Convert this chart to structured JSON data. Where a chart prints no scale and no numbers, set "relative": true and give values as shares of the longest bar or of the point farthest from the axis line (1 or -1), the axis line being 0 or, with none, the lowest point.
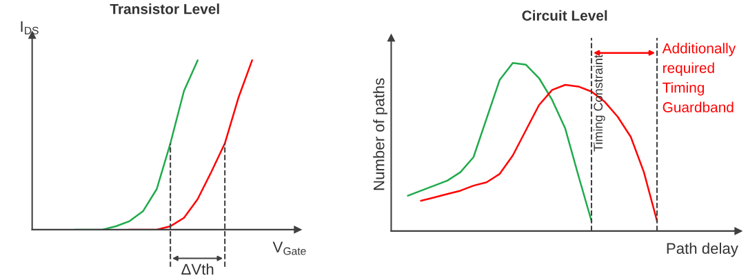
{
  "chart_data": [
    {
      "type": "line",
      "title": "Transistor Level",
      "xlabel": "V$_{Gate}$",
      "ylabel": "I$_{DS}$",
      "relative": true,
      "marker": "none",
      "line_style": "solid",
      "categories": [
        null,
        null,
        null,
        null,
        null,
        null,
        null,
        null,
        null,
        null,
        null,
        null,
        null,
        null,
        null,
        null,
        null,
        null,
        null,
        null
      ],
      "series": [
        {
          "color": "#1faa4b",
          "values": [
            null,
            null,
            null,
            0,
            0,
            0,
            0.02,
            0.05,
            0.11,
            0.24,
            0.51,
            0.82,
            1,
            null,
            null,
            null,
            null,
            null,
            null,
            null
          ]
        },
        {
          "color": "#ff0000",
          "values": [
            null,
            null,
            null,
            null,
            null,
            null,
            null,
            0,
            0,
            0,
            0.02,
            0.07,
            0.18,
            0.34,
            0.51,
            0.78,
            1,
            null,
            null,
            null
          ]
        }
      ],
      "annotations": [
        "ΔVth"
      ]
    },
    {
      "type": "line",
      "title": "Circuit Level",
      "xlabel": "Path delay",
      "ylabel": "Number of paths",
      "relative": true,
      "marker": "none",
      "line_style": "solid",
      "categories": [
        null,
        null,
        null,
        null,
        null,
        null,
        null,
        null,
        null,
        null,
        null,
        null,
        null,
        null,
        null,
        null,
        null,
        null,
        null,
        null,
        null,
        null,
        null,
        null,
        null,
        null,
        null
      ],
      "series": [
        {
          "color": "#1faa4b",
          "values": [
            null,
            0.21,
            0.24,
            0.27,
            0.3,
            0.35,
            0.44,
            0.67,
            0.9,
            1,
            0.99,
            0.91,
            0.78,
            0.61,
            0.33,
            0.06,
            null,
            null,
            null,
            null,
            null,
            null,
            null,
            null,
            null,
            null,
            null
          ]
        },
        {
          "color": "#ff0000",
          "values": [
            null,
            null,
            0.18,
            0.2,
            0.22,
            0.24,
            0.27,
            0.29,
            0.34,
            0.45,
            0.6,
            0.75,
            0.84,
            0.87,
            0.86,
            0.83,
            0.77,
            0.68,
            0.56,
            0.35,
            0.06,
            null,
            null,
            null,
            null,
            null,
            null
          ]
        }
      ],
      "annotations": [
        "Timing Constraint",
        "Additionally\nrequired\nTiming\nGuardband"
      ]
    }
  ]
}
